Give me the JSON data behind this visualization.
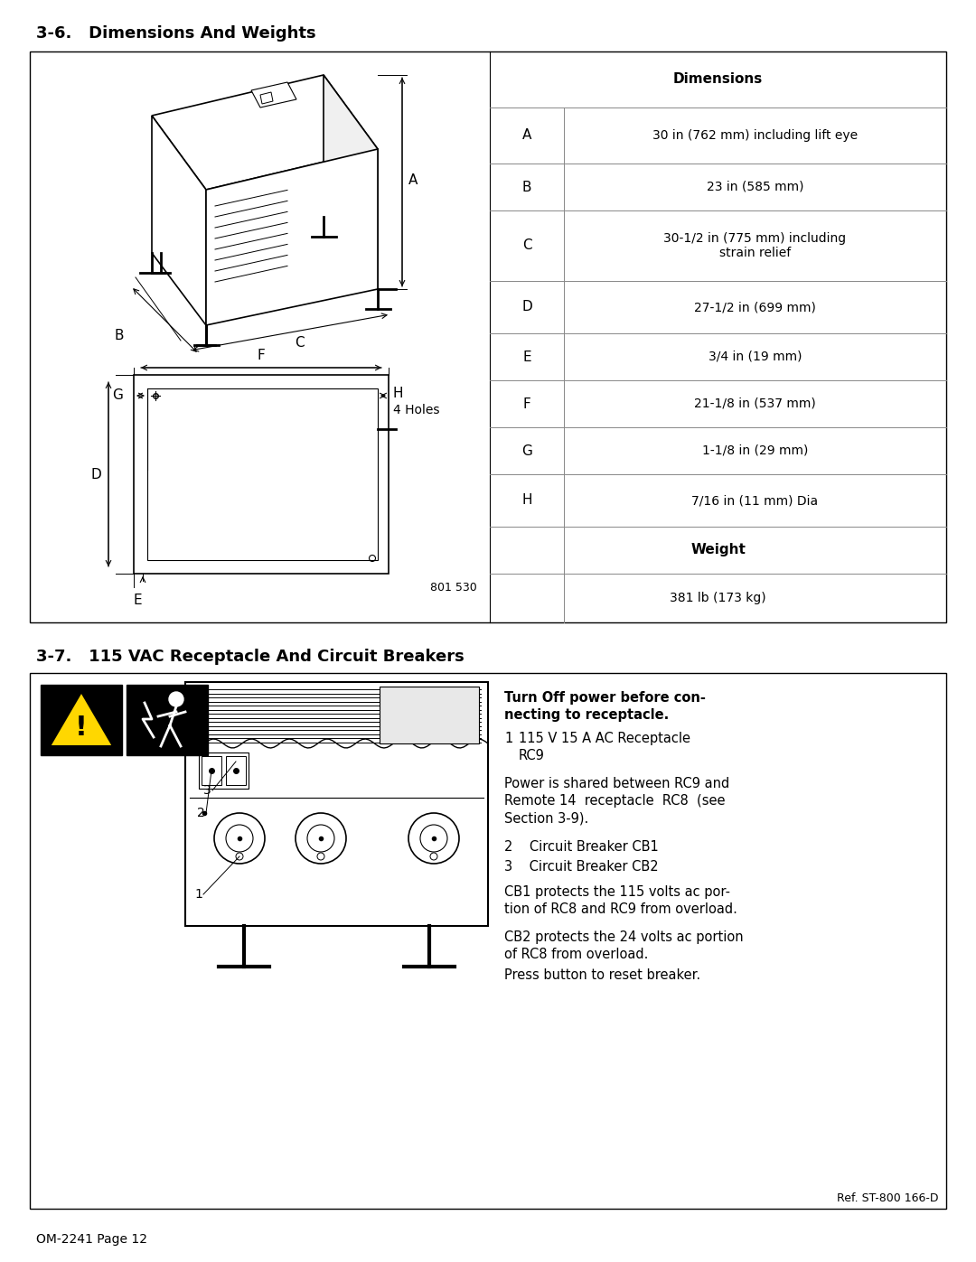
{
  "page_bg": "#ffffff",
  "section1_title": "3-6.   Dimensions And Weights",
  "section2_title": "3-7.   115 VAC Receptacle And Circuit Breakers",
  "footer_text": "OM-2241 Page 12",
  "table_header": "Dimensions",
  "table_rows": [
    [
      "A",
      "30 in (762 mm) including lift eye"
    ],
    [
      "B",
      "23 in (585 mm)"
    ],
    [
      "C",
      "30-1/2 in (775 mm) including\nstrain relief"
    ],
    [
      "D",
      "27-1/2 in (699 mm)"
    ],
    [
      "E",
      "3/4 in (19 mm)"
    ],
    [
      "F",
      "21-1/8 in (537 mm)"
    ],
    [
      "G",
      "1-1/8 in (29 mm)"
    ],
    [
      "H",
      "7/16 in (11 mm) Dia"
    ]
  ],
  "weight_header": "Weight",
  "weight_value": "381 lb (173 kg)",
  "fig_note": "801 530",
  "vac_warning_bold": "Turn Off power before con-\nnecting to receptacle.",
  "vac_item1_num": "1",
  "vac_item1_text": "115 V 15 A AC Receptacle\nRC9",
  "vac_note1": "Power is shared between RC9 and\nRemote 14  receptacle  RC8  (see\nSection 3-9).",
  "vac_item2": "2    Circuit Breaker CB1",
  "vac_item3": "3    Circuit Breaker CB2",
  "vac_note2": "CB1 protects the 115 volts ac por-\ntion of RC8 and RC9 from overload.",
  "vac_note3": "CB2 protects the 24 volts ac portion\nof RC8 from overload.",
  "vac_note4": "Press button to reset breaker.",
  "ref_note": "Ref. ST-800 166-D",
  "border_color": "#000000",
  "text_color": "#000000",
  "line_color": "#000000",
  "table_line_color": "#888888",
  "box_bg": "#ffffff"
}
